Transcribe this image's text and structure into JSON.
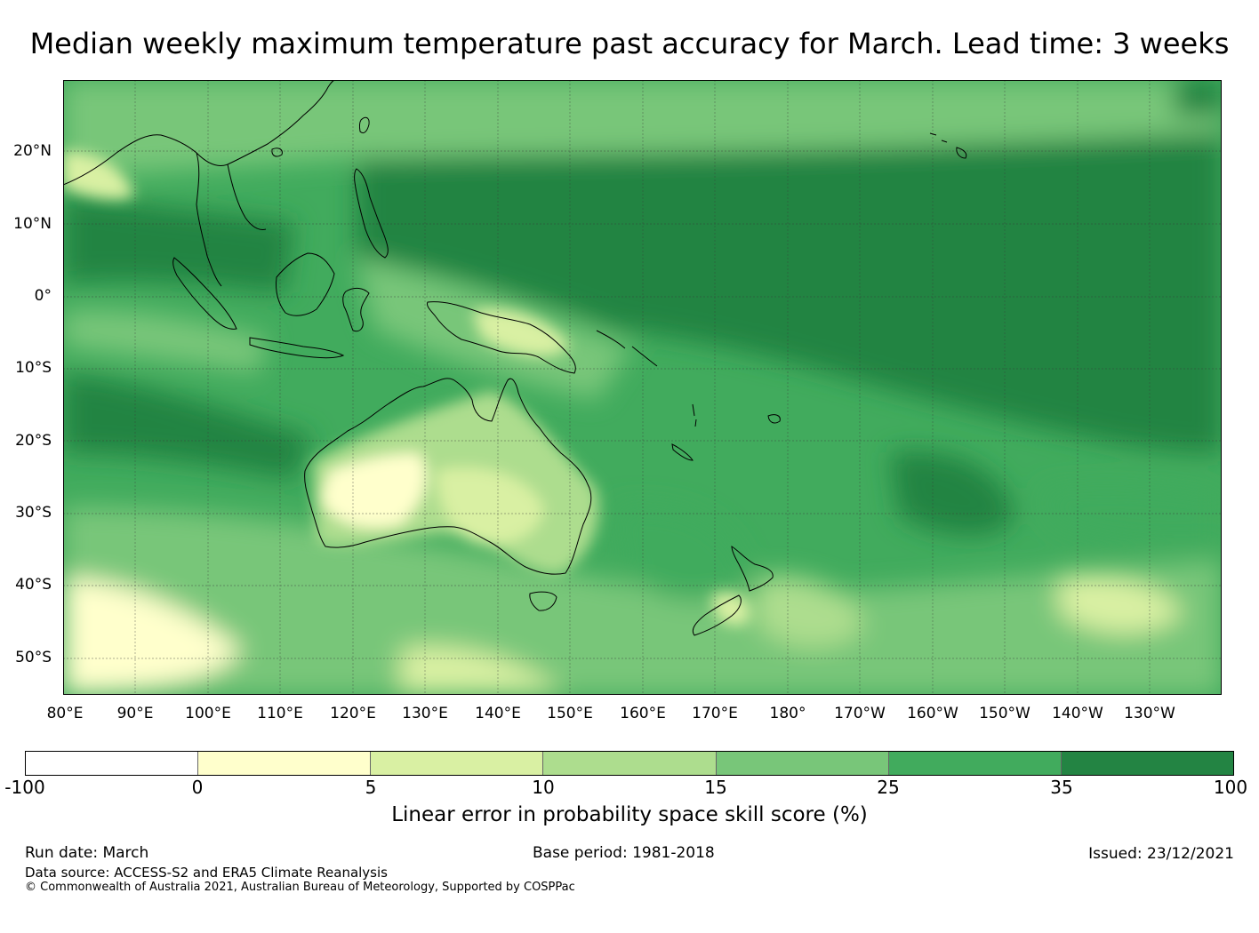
{
  "title": "Median weekly maximum temperature past accuracy for March. Lead time: 3 weeks",
  "map": {
    "lat_labels": [
      "20°N",
      "10°N",
      "0°",
      "10°S",
      "20°S",
      "30°S",
      "40°S",
      "50°S"
    ],
    "lon_labels": [
      "80°E",
      "90°E",
      "100°E",
      "110°E",
      "120°E",
      "130°E",
      "140°E",
      "150°E",
      "160°E",
      "170°E",
      "180°",
      "170°W",
      "160°W",
      "150°W",
      "140°W",
      "130°W"
    ]
  },
  "colorbar": {
    "ticks": [
      "-100",
      "0",
      "5",
      "10",
      "15",
      "25",
      "35",
      "100"
    ],
    "colors": [
      "#ffffff",
      "#ffffcc",
      "#d9f0a3",
      "#addd8e",
      "#78c679",
      "#41ab5d",
      "#238443"
    ],
    "label": "Linear error in probability space skill score (%)"
  },
  "footer": {
    "run_date": "Run date: March",
    "base_period": "Base period: 1981-2018",
    "issued": "Issued: 23/12/2021",
    "data_source": "Data source: ACCESS-S2 and ERA5 Climate Reanalysis",
    "copyright": "© Commonwealth of Australia 2021, Australian Bureau of Meteorology, Supported by COSPPac"
  }
}
